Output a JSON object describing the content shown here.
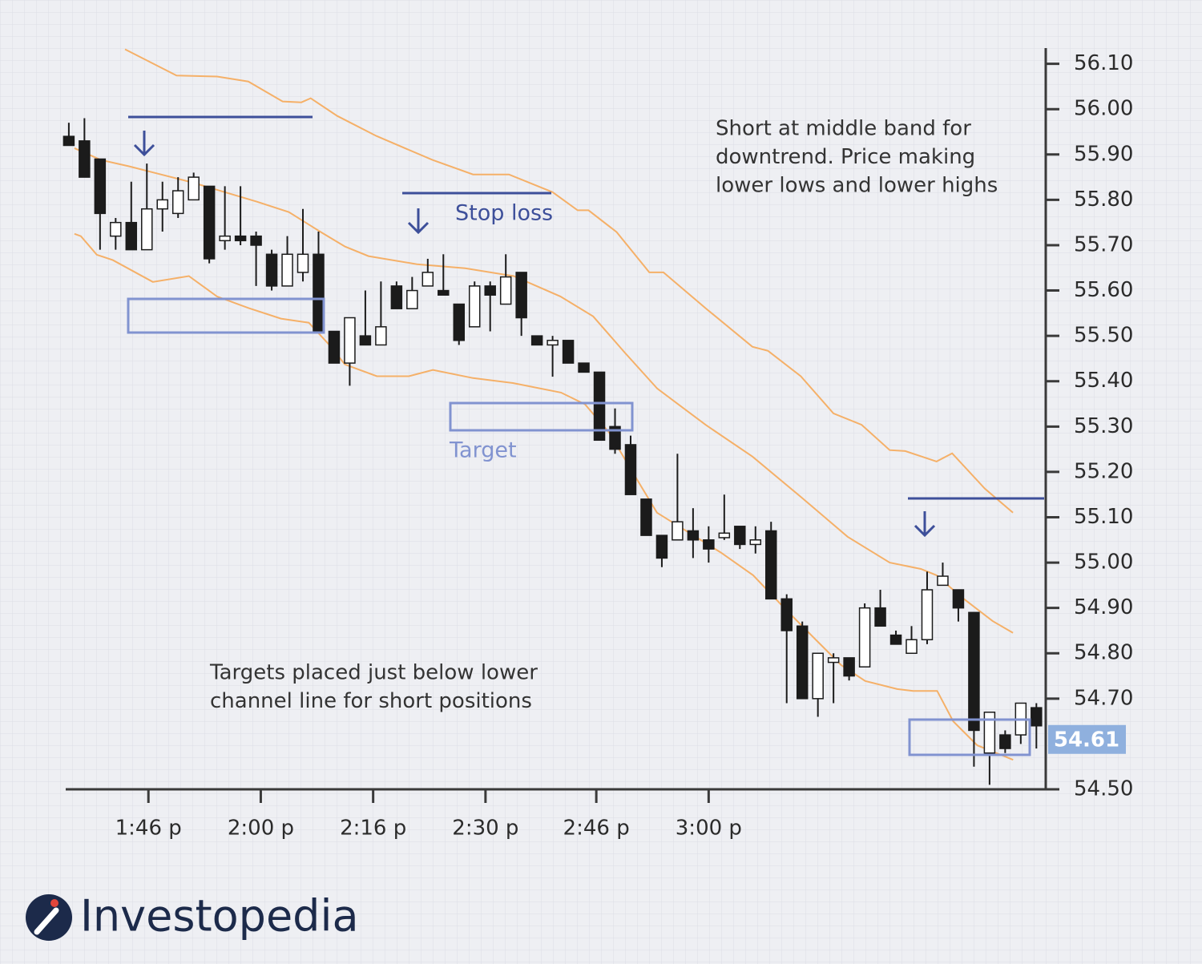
{
  "chart_data": {
    "type": "candlestick",
    "x": [
      0,
      1,
      2,
      3,
      4,
      5,
      6,
      7,
      8,
      9,
      10,
      11,
      12,
      13,
      14,
      15,
      16,
      17,
      18,
      19,
      20,
      21,
      22,
      23,
      24,
      25,
      26,
      27,
      28,
      29,
      30,
      31,
      32,
      33,
      34,
      35,
      36,
      37,
      38,
      39,
      40,
      41,
      42,
      43,
      44,
      45,
      46,
      47,
      48,
      49,
      50,
      51,
      52,
      53,
      54,
      55,
      56,
      57,
      58,
      59,
      60,
      61,
      62
    ],
    "open": [
      55.94,
      55.93,
      55.89,
      55.72,
      55.75,
      55.69,
      55.78,
      55.77,
      55.8,
      55.83,
      55.71,
      55.72,
      55.72,
      55.68,
      55.61,
      55.64,
      55.68,
      55.51,
      55.44,
      55.5,
      55.48,
      55.61,
      55.56,
      55.61,
      55.6,
      55.57,
      55.52,
      55.61,
      55.57,
      55.64,
      55.5,
      55.48,
      55.49,
      55.44,
      55.42,
      55.3,
      55.26,
      55.14,
      55.06,
      55.05,
      55.07,
      55.05,
      55.055,
      55.08,
      55.04,
      55.07,
      54.92,
      54.86,
      54.7,
      54.78,
      54.79,
      54.77,
      54.9,
      54.84,
      54.8,
      54.83,
      54.95,
      54.94,
      54.89,
      54.58,
      54.62,
      54.62,
      54.68
    ],
    "high": [
      55.97,
      55.98,
      55.89,
      55.76,
      55.84,
      55.88,
      55.84,
      55.85,
      55.86,
      55.83,
      55.83,
      55.83,
      55.73,
      55.69,
      55.72,
      55.78,
      55.73,
      55.51,
      55.54,
      55.6,
      55.62,
      55.62,
      55.63,
      55.67,
      55.68,
      55.57,
      55.62,
      55.62,
      55.68,
      55.64,
      55.5,
      55.5,
      55.49,
      55.44,
      55.42,
      55.34,
      55.28,
      55.14,
      55.06,
      55.24,
      55.12,
      55.08,
      55.15,
      55.08,
      55.08,
      55.09,
      54.93,
      54.87,
      54.8,
      54.8,
      54.79,
      54.91,
      54.94,
      54.85,
      54.86,
      54.98,
      55.0,
      54.94,
      54.89,
      54.67,
      54.63,
      54.69,
      54.69
    ],
    "low": [
      55.92,
      55.85,
      55.69,
      55.69,
      55.69,
      55.69,
      55.73,
      55.76,
      55.8,
      55.66,
      55.69,
      55.7,
      55.61,
      55.6,
      55.61,
      55.62,
      55.51,
      55.44,
      55.39,
      55.48,
      55.48,
      55.56,
      55.56,
      55.61,
      55.59,
      55.48,
      55.52,
      55.51,
      55.57,
      55.5,
      55.48,
      55.41,
      55.44,
      55.42,
      55.27,
      55.24,
      55.15,
      55.06,
      54.99,
      55.05,
      55.01,
      55.0,
      55.05,
      55.03,
      55.02,
      54.92,
      54.69,
      54.7,
      54.66,
      54.69,
      54.74,
      54.77,
      54.86,
      54.82,
      54.8,
      54.82,
      54.95,
      54.87,
      54.55,
      54.51,
      54.58,
      54.6,
      54.59
    ],
    "close": [
      55.92,
      55.85,
      55.77,
      55.75,
      55.69,
      55.78,
      55.8,
      55.82,
      55.85,
      55.67,
      55.72,
      55.71,
      55.7,
      55.61,
      55.68,
      55.68,
      55.51,
      55.44,
      55.54,
      55.48,
      55.52,
      55.56,
      55.6,
      55.64,
      55.59,
      55.49,
      55.61,
      55.59,
      55.63,
      55.54,
      55.48,
      55.49,
      55.44,
      55.42,
      55.27,
      55.25,
      55.15,
      55.06,
      55.01,
      55.09,
      55.05,
      55.03,
      55.065,
      55.04,
      55.05,
      54.92,
      54.85,
      54.7,
      54.8,
      54.79,
      54.75,
      54.9,
      54.86,
      54.82,
      54.83,
      54.94,
      54.97,
      54.9,
      54.63,
      54.67,
      54.59,
      54.69,
      54.64
    ],
    "up_color": "#ffffff",
    "down_color": "#1b1b1b",
    "xlim": [
      -0.2,
      62.6
    ],
    "xticks": [
      {
        "value": 5.1,
        "label": "1:46 p"
      },
      {
        "value": 12.3,
        "label": "2:00 p"
      },
      {
        "value": 19.5,
        "label": "2:16 p"
      },
      {
        "value": 26.7,
        "label": "2:30 p"
      },
      {
        "value": 33.8,
        "label": "2:46 p"
      },
      {
        "value": 41.0,
        "label": "3:00 p"
      }
    ],
    "ylim": [
      54.5,
      56.14
    ],
    "yticks": [
      {
        "value": 54.5,
        "label": "54.50"
      },
      {
        "value": 54.7,
        "label": "54.70"
      },
      {
        "value": 54.8,
        "label": "54.80"
      },
      {
        "value": 54.9,
        "label": "54.90"
      },
      {
        "value": 55.0,
        "label": "55.00"
      },
      {
        "value": 55.1,
        "label": "55.10"
      },
      {
        "value": 55.2,
        "label": "55.20"
      },
      {
        "value": 55.3,
        "label": "55.30"
      },
      {
        "value": 55.4,
        "label": "55.40"
      },
      {
        "value": 55.5,
        "label": "55.50"
      },
      {
        "value": 55.6,
        "label": "55.60"
      },
      {
        "value": 55.7,
        "label": "55.70"
      },
      {
        "value": 55.8,
        "label": "55.80"
      },
      {
        "value": 55.9,
        "label": "55.90"
      },
      {
        "value": 56.0,
        "label": "56.00"
      },
      {
        "value": 56.1,
        "label": "56.10"
      }
    ],
    "grid": true,
    "bands": [
      {
        "color": "#f5b068",
        "x": [
          3.6,
          6.9,
          9.5,
          11.5,
          13.7,
          14.9,
          15.5,
          17.2,
          19.7,
          23.3,
          25.9,
          28.2,
          31.0,
          32.6,
          33.3,
          35.1,
          37.2,
          38.1,
          40.8,
          43.8,
          44.8,
          46.9,
          49.0,
          50.8,
          52.6,
          53.6,
          55.6,
          56.6,
          58.7,
          60.5
        ],
        "values": [
          56.132,
          56.074,
          56.072,
          56.061,
          56.017,
          56.015,
          56.024,
          55.985,
          55.941,
          55.888,
          55.856,
          55.856,
          55.817,
          55.777,
          55.777,
          55.729,
          55.64,
          55.64,
          55.561,
          55.476,
          55.467,
          55.411,
          55.329,
          55.304,
          55.248,
          55.246,
          55.223,
          55.241,
          55.163,
          55.11
        ]
      },
      {
        "color": "#f5b068",
        "x": [
          0.36,
          2.05,
          3.85,
          5.9,
          7.95,
          10.0,
          12.05,
          14.1,
          16.15,
          17.7,
          19.2,
          22.3,
          25.4,
          28.5,
          31.5,
          33.6,
          35.6,
          37.7,
          40.8,
          43.8,
          46.9,
          49.9,
          52.6,
          54.6,
          55.6,
          57.2,
          59.2,
          60.5
        ],
        "values": [
          55.914,
          55.888,
          55.874,
          55.856,
          55.838,
          55.817,
          55.796,
          55.773,
          55.729,
          55.697,
          55.676,
          55.658,
          55.649,
          55.632,
          55.587,
          55.543,
          55.464,
          55.384,
          55.304,
          55.234,
          55.145,
          55.057,
          55.0,
          54.986,
          54.972,
          54.924,
          54.871,
          54.845
        ]
      },
      {
        "color": "#f5b068",
        "x": [
          0.36,
          0.77,
          1.79,
          2.82,
          5.38,
          7.69,
          9.49,
          11.54,
          13.59,
          15.38,
          16.67,
          17.69,
          19.74,
          21.79,
          23.33,
          25.9,
          28.46,
          31.54,
          33.08,
          34.62,
          36.15,
          37.69,
          39.74,
          41.79,
          43.85,
          45.9,
          47.95,
          49.49,
          51.03,
          53.08,
          54.1,
          55.64,
          56.67,
          58.21,
          60.51
        ],
        "values": [
          55.725,
          55.72,
          55.679,
          55.667,
          55.619,
          55.632,
          55.587,
          55.561,
          55.538,
          55.529,
          55.481,
          55.437,
          55.411,
          55.411,
          55.425,
          55.407,
          55.396,
          55.375,
          55.349,
          55.287,
          55.198,
          55.11,
          55.066,
          55.022,
          54.972,
          54.898,
          54.827,
          54.774,
          54.739,
          54.721,
          54.717,
          54.717,
          54.65,
          54.597,
          54.565
        ]
      }
    ],
    "last_price": {
      "value": 54.61,
      "label": "54.61"
    },
    "stop_loss_label": "Stop loss",
    "target_label": "Target",
    "notes": [
      [
        "Short at middle band for",
        "downtrend. Price making",
        "lower lows and lower highs"
      ],
      [
        "Targets placed just below lower",
        "channel line for short positions"
      ]
    ]
  },
  "logo": "Investopedia"
}
